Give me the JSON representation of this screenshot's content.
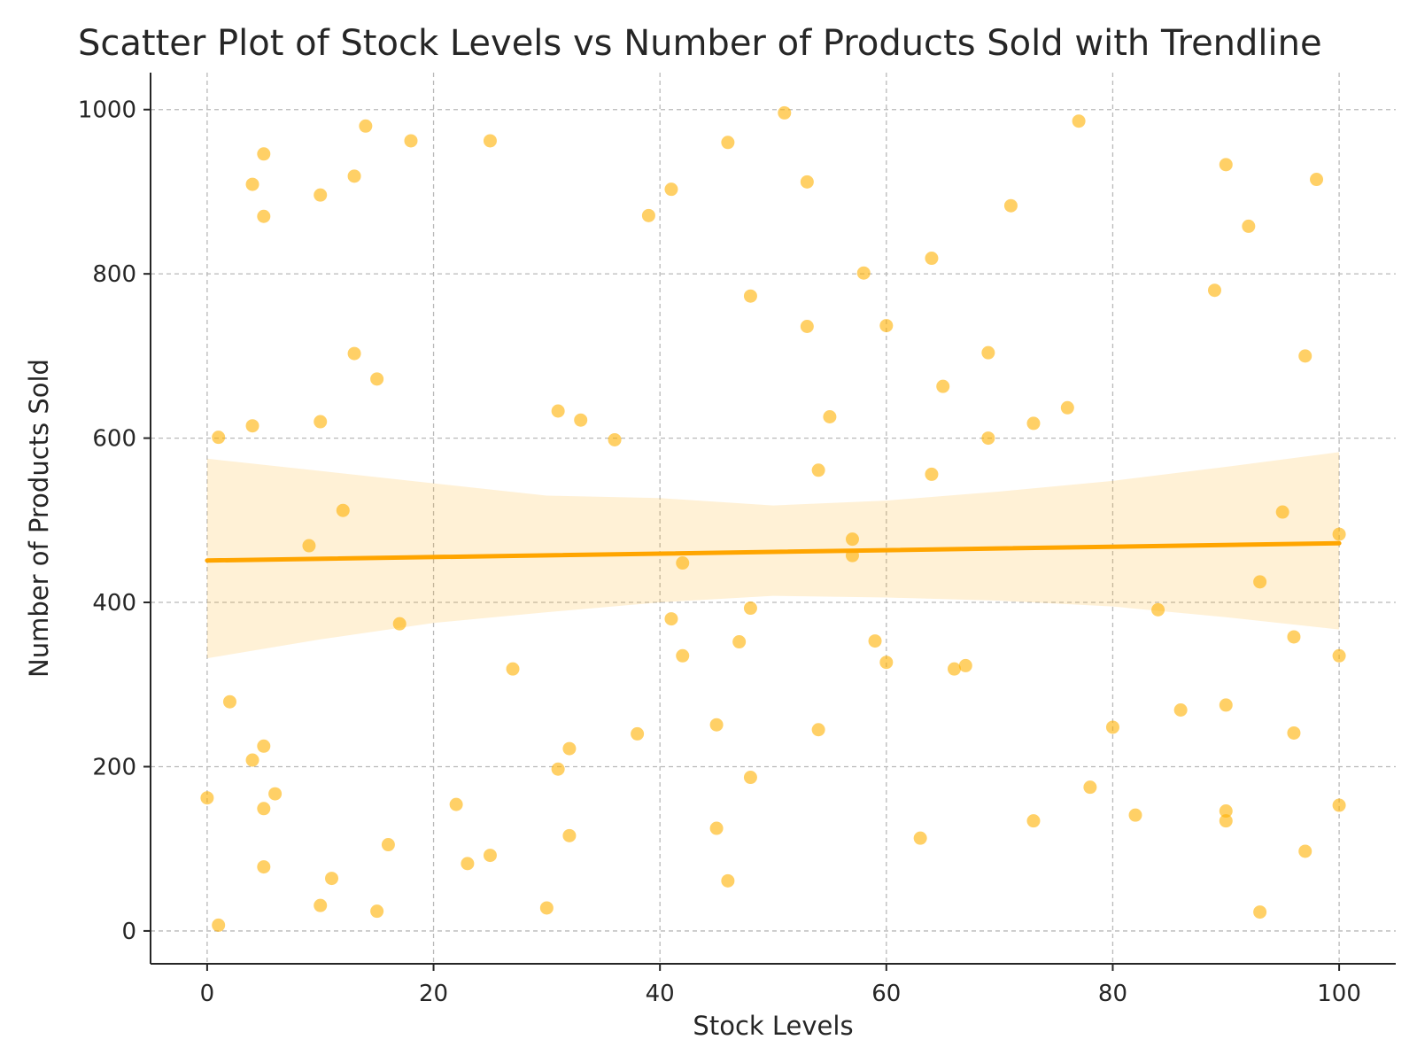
{
  "chart_data": {
    "type": "scatter",
    "title": "Scatter Plot of Stock Levels vs Number of Products Sold with Trendline",
    "xlabel": "Stock Levels",
    "ylabel": "Number of Products Sold",
    "xlim": [
      -5,
      105
    ],
    "ylim": [
      -40,
      1045
    ],
    "xticks": [
      0,
      20,
      40,
      60,
      80,
      100
    ],
    "yticks": [
      0,
      200,
      400,
      600,
      800,
      1000
    ],
    "grid": true,
    "color": "#ffb000",
    "trend_color": "#ffa500",
    "points": [
      {
        "x": 0,
        "y": 162
      },
      {
        "x": 1,
        "y": 601
      },
      {
        "x": 1,
        "y": 7
      },
      {
        "x": 2,
        "y": 279
      },
      {
        "x": 4,
        "y": 909
      },
      {
        "x": 4,
        "y": 615
      },
      {
        "x": 4,
        "y": 208
      },
      {
        "x": 5,
        "y": 946
      },
      {
        "x": 5,
        "y": 870
      },
      {
        "x": 5,
        "y": 225
      },
      {
        "x": 5,
        "y": 149
      },
      {
        "x": 5,
        "y": 78
      },
      {
        "x": 6,
        "y": 167
      },
      {
        "x": 9,
        "y": 469
      },
      {
        "x": 10,
        "y": 896
      },
      {
        "x": 10,
        "y": 620
      },
      {
        "x": 10,
        "y": 31
      },
      {
        "x": 11,
        "y": 64
      },
      {
        "x": 12,
        "y": 512
      },
      {
        "x": 13,
        "y": 919
      },
      {
        "x": 13,
        "y": 703
      },
      {
        "x": 14,
        "y": 980
      },
      {
        "x": 15,
        "y": 672
      },
      {
        "x": 15,
        "y": 24
      },
      {
        "x": 16,
        "y": 105
      },
      {
        "x": 17,
        "y": 374
      },
      {
        "x": 18,
        "y": 962
      },
      {
        "x": 22,
        "y": 154
      },
      {
        "x": 23,
        "y": 82
      },
      {
        "x": 25,
        "y": 962
      },
      {
        "x": 25,
        "y": 92
      },
      {
        "x": 27,
        "y": 319
      },
      {
        "x": 30,
        "y": 28
      },
      {
        "x": 31,
        "y": 633
      },
      {
        "x": 31,
        "y": 197
      },
      {
        "x": 32,
        "y": 222
      },
      {
        "x": 32,
        "y": 116
      },
      {
        "x": 33,
        "y": 622
      },
      {
        "x": 36,
        "y": 598
      },
      {
        "x": 38,
        "y": 240
      },
      {
        "x": 39,
        "y": 871
      },
      {
        "x": 41,
        "y": 903
      },
      {
        "x": 41,
        "y": 380
      },
      {
        "x": 42,
        "y": 448
      },
      {
        "x": 42,
        "y": 335
      },
      {
        "x": 45,
        "y": 251
      },
      {
        "x": 45,
        "y": 125
      },
      {
        "x": 46,
        "y": 960
      },
      {
        "x": 46,
        "y": 61
      },
      {
        "x": 47,
        "y": 352
      },
      {
        "x": 48,
        "y": 773
      },
      {
        "x": 48,
        "y": 393
      },
      {
        "x": 48,
        "y": 187
      },
      {
        "x": 51,
        "y": 996
      },
      {
        "x": 53,
        "y": 912
      },
      {
        "x": 53,
        "y": 736
      },
      {
        "x": 54,
        "y": 561
      },
      {
        "x": 54,
        "y": 245
      },
      {
        "x": 55,
        "y": 626
      },
      {
        "x": 57,
        "y": 477
      },
      {
        "x": 57,
        "y": 457
      },
      {
        "x": 58,
        "y": 801
      },
      {
        "x": 59,
        "y": 353
      },
      {
        "x": 60,
        "y": 737
      },
      {
        "x": 60,
        "y": 327
      },
      {
        "x": 63,
        "y": 113
      },
      {
        "x": 64,
        "y": 819
      },
      {
        "x": 64,
        "y": 556
      },
      {
        "x": 65,
        "y": 663
      },
      {
        "x": 66,
        "y": 319
      },
      {
        "x": 67,
        "y": 323
      },
      {
        "x": 69,
        "y": 704
      },
      {
        "x": 69,
        "y": 600
      },
      {
        "x": 71,
        "y": 883
      },
      {
        "x": 73,
        "y": 618
      },
      {
        "x": 73,
        "y": 134
      },
      {
        "x": 76,
        "y": 637
      },
      {
        "x": 77,
        "y": 986
      },
      {
        "x": 78,
        "y": 175
      },
      {
        "x": 80,
        "y": 248
      },
      {
        "x": 82,
        "y": 141
      },
      {
        "x": 84,
        "y": 391
      },
      {
        "x": 86,
        "y": 269
      },
      {
        "x": 89,
        "y": 780
      },
      {
        "x": 90,
        "y": 933
      },
      {
        "x": 90,
        "y": 275
      },
      {
        "x": 90,
        "y": 146
      },
      {
        "x": 90,
        "y": 134
      },
      {
        "x": 92,
        "y": 858
      },
      {
        "x": 93,
        "y": 425
      },
      {
        "x": 93,
        "y": 23
      },
      {
        "x": 95,
        "y": 510
      },
      {
        "x": 96,
        "y": 358
      },
      {
        "x": 96,
        "y": 241
      },
      {
        "x": 97,
        "y": 700
      },
      {
        "x": 97,
        "y": 97
      },
      {
        "x": 98,
        "y": 915
      },
      {
        "x": 100,
        "y": 483
      },
      {
        "x": 100,
        "y": 335
      },
      {
        "x": 100,
        "y": 153
      }
    ],
    "trendline": {
      "x": [
        0,
        100
      ],
      "y": [
        451,
        472
      ]
    },
    "confidence_band": {
      "x": [
        0,
        10,
        20,
        30,
        40,
        50,
        60,
        70,
        80,
        90,
        100
      ],
      "upper": [
        575,
        560,
        545,
        530,
        527,
        518,
        524,
        535,
        548,
        565,
        583
      ],
      "lower": [
        332,
        355,
        375,
        388,
        400,
        408,
        406,
        402,
        395,
        382,
        367
      ]
    }
  }
}
